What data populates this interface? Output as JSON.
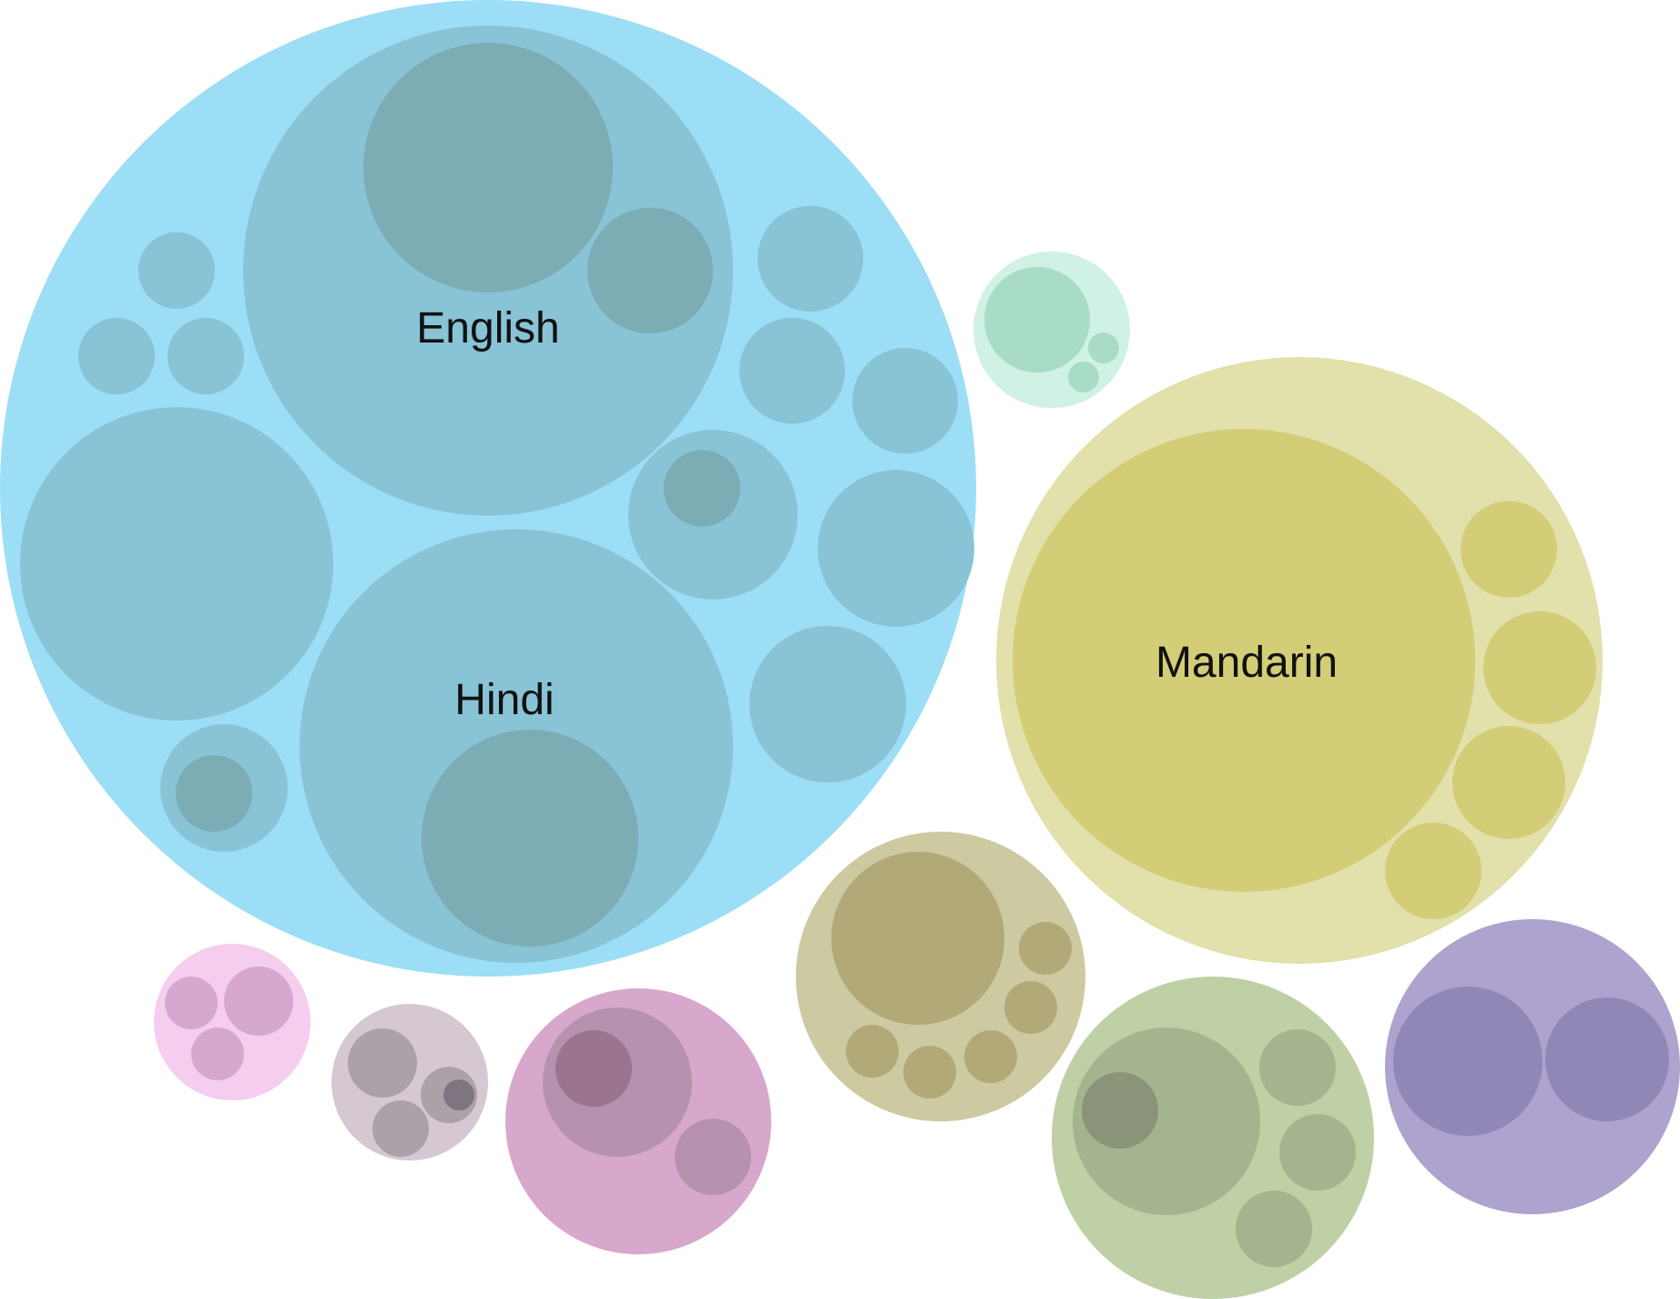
{
  "colors": {
    "indo_european": [
      "#9cdef6",
      "#88c3d6",
      "#7cacb4",
      "#6f9aa2"
    ],
    "sino_tibetan": [
      "#e2e0ab",
      "#d3cd77"
    ],
    "tai_kadai": [
      "#d0f2e4",
      "#a8dcc7"
    ],
    "austronesian": [
      "#cdc9a1",
      "#b2a979"
    ],
    "niger_congo": [
      "#c0d0a6",
      "#a4b48e",
      "#899479"
    ],
    "afro_asiatic": [
      "#aea3ce",
      "#9087b6"
    ],
    "japonic": [
      "#f5cdee",
      "#d7a8cf"
    ],
    "dravidian": [
      "#d5c8d2",
      "#aca0a9",
      "#7e7580"
    ],
    "turkic": [
      "#d7a8cb",
      "#b792ae",
      "#9b7590"
    ]
  },
  "labels": {
    "english": "English",
    "hindi": "Hindi",
    "mandarin": "Mandarin"
  }
}
